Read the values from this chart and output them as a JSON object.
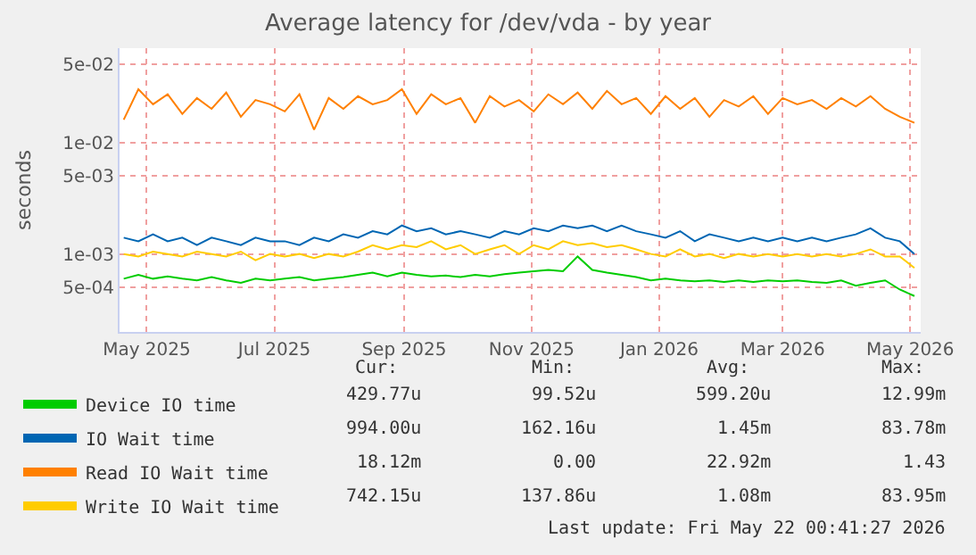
{
  "chart_data": {
    "type": "line",
    "title": "Average latency for /dev/vda - by year",
    "ylabel": "seconds",
    "x": [
      "2025-04-20",
      "2025-04-27",
      "2025-05-04",
      "2025-05-11",
      "2025-05-18",
      "2025-05-25",
      "2025-06-01",
      "2025-06-08",
      "2025-06-15",
      "2025-06-22",
      "2025-06-29",
      "2025-07-06",
      "2025-07-13",
      "2025-07-20",
      "2025-07-27",
      "2025-08-03",
      "2025-08-10",
      "2025-08-17",
      "2025-08-24",
      "2025-08-31",
      "2025-09-07",
      "2025-09-14",
      "2025-09-21",
      "2025-09-28",
      "2025-10-05",
      "2025-10-12",
      "2025-10-19",
      "2025-10-26",
      "2025-11-02",
      "2025-11-09",
      "2025-11-16",
      "2025-11-23",
      "2025-11-30",
      "2025-12-07",
      "2025-12-14",
      "2025-12-21",
      "2025-12-28",
      "2026-01-04",
      "2026-01-11",
      "2026-01-18",
      "2026-01-25",
      "2026-02-01",
      "2026-02-08",
      "2026-02-15",
      "2026-02-22",
      "2026-03-01",
      "2026-03-08",
      "2026-03-15",
      "2026-03-22",
      "2026-03-29",
      "2026-04-05",
      "2026-04-12",
      "2026-04-19",
      "2026-04-26",
      "2026-05-03"
    ],
    "series": [
      {
        "name": "Device IO time",
        "color": "#00cc00",
        "values": [
          0.0006,
          0.00065,
          0.0006,
          0.00063,
          0.0006,
          0.00058,
          0.00062,
          0.00058,
          0.00055,
          0.0006,
          0.00058,
          0.0006,
          0.00062,
          0.00058,
          0.0006,
          0.00062,
          0.00065,
          0.00068,
          0.00063,
          0.00068,
          0.00065,
          0.00063,
          0.00064,
          0.00062,
          0.00065,
          0.00063,
          0.00066,
          0.00068,
          0.0007,
          0.00072,
          0.0007,
          0.00095,
          0.00072,
          0.00068,
          0.00065,
          0.00062,
          0.00058,
          0.0006,
          0.00058,
          0.00057,
          0.00058,
          0.00056,
          0.00058,
          0.00056,
          0.00058,
          0.00057,
          0.00058,
          0.00056,
          0.00055,
          0.00058,
          0.00052,
          0.00055,
          0.00058,
          0.00048,
          0.00042
        ]
      },
      {
        "name": "IO Wait time",
        "color": "#0066b3",
        "values": [
          0.0014,
          0.0013,
          0.0015,
          0.0013,
          0.0014,
          0.0012,
          0.0014,
          0.0013,
          0.0012,
          0.0014,
          0.0013,
          0.0013,
          0.0012,
          0.0014,
          0.0013,
          0.0015,
          0.0014,
          0.0016,
          0.0015,
          0.0018,
          0.0016,
          0.0017,
          0.0015,
          0.0016,
          0.0015,
          0.0014,
          0.0016,
          0.0015,
          0.0017,
          0.0016,
          0.0018,
          0.0017,
          0.0018,
          0.0016,
          0.0018,
          0.0016,
          0.0015,
          0.0014,
          0.0016,
          0.0013,
          0.0015,
          0.0014,
          0.0013,
          0.0014,
          0.0013,
          0.0014,
          0.0013,
          0.0014,
          0.0013,
          0.0014,
          0.0015,
          0.0017,
          0.0014,
          0.0013,
          0.001
        ]
      },
      {
        "name": "Read IO Wait time",
        "color": "#ff8000",
        "values": [
          0.016,
          0.03,
          0.022,
          0.027,
          0.018,
          0.025,
          0.02,
          0.028,
          0.017,
          0.024,
          0.022,
          0.019,
          0.027,
          0.013,
          0.025,
          0.02,
          0.026,
          0.022,
          0.024,
          0.03,
          0.018,
          0.027,
          0.022,
          0.025,
          0.015,
          0.026,
          0.021,
          0.024,
          0.019,
          0.027,
          0.022,
          0.028,
          0.02,
          0.029,
          0.022,
          0.025,
          0.018,
          0.026,
          0.02,
          0.025,
          0.017,
          0.024,
          0.021,
          0.026,
          0.018,
          0.025,
          0.022,
          0.024,
          0.02,
          0.025,
          0.021,
          0.026,
          0.02,
          0.017,
          0.015
        ]
      },
      {
        "name": "Write IO Wait time",
        "color": "#ffcc00",
        "values": [
          0.001,
          0.00095,
          0.00105,
          0.001,
          0.00095,
          0.00105,
          0.001,
          0.00095,
          0.00105,
          0.00088,
          0.001,
          0.00095,
          0.001,
          0.00092,
          0.001,
          0.00095,
          0.00105,
          0.0012,
          0.0011,
          0.0012,
          0.00115,
          0.0013,
          0.0011,
          0.0012,
          0.001,
          0.0011,
          0.0012,
          0.001,
          0.0012,
          0.0011,
          0.0013,
          0.0012,
          0.00125,
          0.00115,
          0.0012,
          0.0011,
          0.001,
          0.00095,
          0.0011,
          0.00095,
          0.001,
          0.00092,
          0.001,
          0.00095,
          0.001,
          0.00095,
          0.001,
          0.00095,
          0.001,
          0.00095,
          0.001,
          0.0011,
          0.00095,
          0.00095,
          0.00075
        ]
      }
    ],
    "log": "y",
    "ylim": [
      0.0002,
      0.07
    ],
    "yticks": [
      {
        "value": 0.0005,
        "label": "5e-04"
      },
      {
        "value": 0.001,
        "label": "1e-03"
      },
      {
        "value": 0.005,
        "label": "5e-03"
      },
      {
        "value": 0.01,
        "label": "1e-02"
      },
      {
        "value": 0.05,
        "label": "5e-02"
      }
    ],
    "xlim": [
      "2025-04-18",
      "2026-05-06"
    ],
    "xticks": [
      {
        "value": "2025-05-01",
        "label": "May 2025"
      },
      {
        "value": "2025-07-01",
        "label": "Jul 2025"
      },
      {
        "value": "2025-09-01",
        "label": "Sep 2025"
      },
      {
        "value": "2025-11-01",
        "label": "Nov 2025"
      },
      {
        "value": "2026-01-01",
        "label": "Jan 2026"
      },
      {
        "value": "2026-03-01",
        "label": "Mar 2026"
      },
      {
        "value": "2026-05-01",
        "label": "May 2026"
      }
    ],
    "grid": true,
    "legend": "bottom left",
    "marker": "none",
    "line_style": "solid",
    "annotations": [
      "Cur:",
      "Min:",
      "Avg:",
      "Max:",
      "429.77u",
      "99.52u",
      "599.20u",
      "12.99m",
      "994.00u",
      "162.16u",
      "1.45m",
      "83.78m",
      "18.12m",
      "0.00",
      "22.92m",
      "1.43",
      "742.15u",
      "137.86u",
      "1.08m",
      "83.95m",
      "Last update: Fri May 22 00:41:27 2026"
    ]
  }
}
